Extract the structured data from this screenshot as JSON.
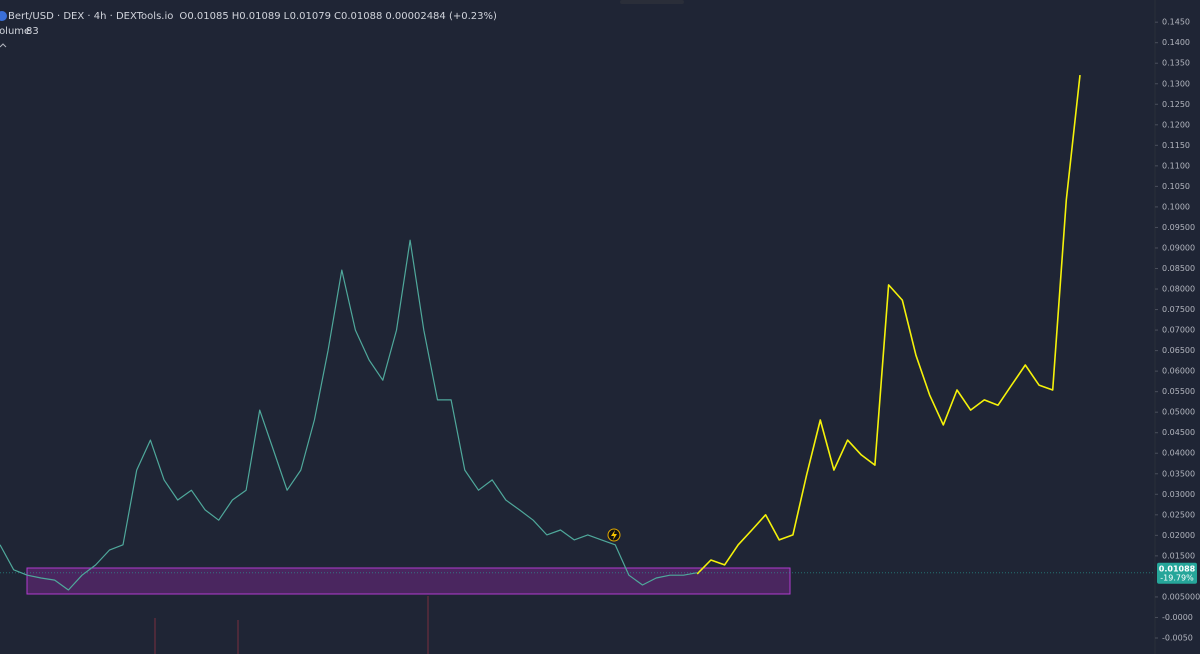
{
  "header": {
    "symbol": "Bert/USD · DEX · 4h · DEXTools.io",
    "ohlc": [
      {
        "key": "O",
        "value": 0.01085
      },
      {
        "key": "H",
        "value": 0.01089
      },
      {
        "key": "L",
        "value": 0.01079
      },
      {
        "key": "C",
        "value": 0.01088
      }
    ],
    "change": "0.00002484 (+0.23%)",
    "volume_label": "Volume",
    "volume_value": 83
  },
  "price_tag": {
    "value": 0.01088,
    "change": "-19.79%",
    "color": "#26a69a"
  },
  "chart_data": {
    "type": "line",
    "categories": [
      null,
      null,
      null,
      null,
      null,
      null,
      null,
      null,
      null,
      null,
      null,
      null,
      null,
      null,
      null,
      null,
      null,
      null,
      null,
      null,
      null,
      null,
      null,
      null,
      null,
      null,
      null,
      null,
      null,
      null,
      null,
      null,
      null,
      null,
      null,
      null,
      null,
      null,
      null,
      null,
      null,
      null,
      null,
      null,
      null,
      null,
      null,
      null,
      null,
      null,
      null,
      null,
      null,
      null,
      null,
      null,
      null,
      null,
      null,
      null,
      null,
      null,
      null,
      null,
      null,
      null,
      null,
      null,
      null,
      null,
      null,
      null,
      null,
      null,
      null,
      null,
      null,
      null,
      null,
      null
    ],
    "series": [
      {
        "color": "#4fa89b",
        "values": [
          0.0177,
          0.0116,
          0.0103,
          0.0096,
          0.0091,
          0.0067,
          0.0103,
          0.0128,
          0.0164,
          0.0177,
          0.0359,
          0.0432,
          0.0335,
          0.0286,
          0.031,
          0.0262,
          0.0237,
          0.0286,
          0.031,
          0.0505,
          0.0408,
          0.031,
          0.0359,
          0.0481,
          0.0651,
          0.0846,
          0.07,
          0.0627,
          0.0578,
          0.07,
          0.0919,
          0.07,
          0.053,
          0.053,
          0.0359,
          0.031,
          0.0335,
          0.0286,
          0.0262,
          0.0237,
          0.0201,
          0.0213,
          0.0189,
          0.0201,
          0.0189,
          0.0177,
          0.0103,
          0.0079,
          0.0096,
          0.0103,
          0.0103,
          0.0109,
          null,
          null,
          null,
          null,
          null,
          null,
          null,
          null,
          null,
          null,
          null,
          null,
          null,
          null,
          null,
          null,
          null,
          null,
          null,
          null,
          null,
          null,
          null,
          null,
          null,
          null,
          null,
          null
        ]
      },
      {
        "color": "#f5f20a",
        "values": [
          null,
          null,
          null,
          null,
          null,
          null,
          null,
          null,
          null,
          null,
          null,
          null,
          null,
          null,
          null,
          null,
          null,
          null,
          null,
          null,
          null,
          null,
          null,
          null,
          null,
          null,
          null,
          null,
          null,
          null,
          null,
          null,
          null,
          null,
          null,
          null,
          null,
          null,
          null,
          null,
          null,
          null,
          null,
          null,
          null,
          null,
          null,
          null,
          null,
          null,
          null,
          0.0106,
          0.014,
          0.0128,
          0.0177,
          0.0213,
          0.025,
          0.0189,
          0.0201,
          0.0347,
          0.0481,
          0.0359,
          0.0432,
          0.0396,
          0.0371,
          0.081,
          0.0773,
          0.0639,
          0.0542,
          0.0469,
          0.0554,
          0.0505,
          0.053,
          0.0517,
          0.0566,
          0.0615,
          0.0566,
          0.0554,
          0.1017,
          0.1321
        ]
      }
    ],
    "ylim": [
      -0.0089,
      0.1504
    ],
    "yticks": [
      {
        "value": 0.145,
        "label": "0.1450"
      },
      {
        "value": 0.14,
        "label": "0.1400"
      },
      {
        "value": 0.135,
        "label": "0.1350"
      },
      {
        "value": 0.13,
        "label": "0.1300"
      },
      {
        "value": 0.125,
        "label": "0.1250"
      },
      {
        "value": 0.12,
        "label": "0.1200"
      },
      {
        "value": 0.115,
        "label": "0.1150"
      },
      {
        "value": 0.11,
        "label": "0.1100"
      },
      {
        "value": 0.105,
        "label": "0.1050"
      },
      {
        "value": 0.1,
        "label": "0.1000"
      },
      {
        "value": 0.095,
        "label": "0.09500"
      },
      {
        "value": 0.09,
        "label": "0.09000"
      },
      {
        "value": 0.085,
        "label": "0.08500"
      },
      {
        "value": 0.08,
        "label": "0.08000"
      },
      {
        "value": 0.075,
        "label": "0.07500"
      },
      {
        "value": 0.07,
        "label": "0.07000"
      },
      {
        "value": 0.065,
        "label": "0.06500"
      },
      {
        "value": 0.06,
        "label": "0.06000"
      },
      {
        "value": 0.055,
        "label": "0.05500"
      },
      {
        "value": 0.05,
        "label": "0.05000"
      },
      {
        "value": 0.045,
        "label": "0.04500"
      },
      {
        "value": 0.04,
        "label": "0.04000"
      },
      {
        "value": 0.035,
        "label": "0.03500"
      },
      {
        "value": 0.03,
        "label": "0.03000"
      },
      {
        "value": 0.025,
        "label": "0.02500"
      },
      {
        "value": 0.02,
        "label": "0.02000"
      },
      {
        "value": 0.015,
        "label": "0.01500"
      },
      {
        "value": 0.005,
        "label": "0.005000"
      },
      {
        "value": 0,
        "label": "-0.0000"
      },
      {
        "value": -0.005,
        "label": "-0.0050"
      }
    ]
  }
}
